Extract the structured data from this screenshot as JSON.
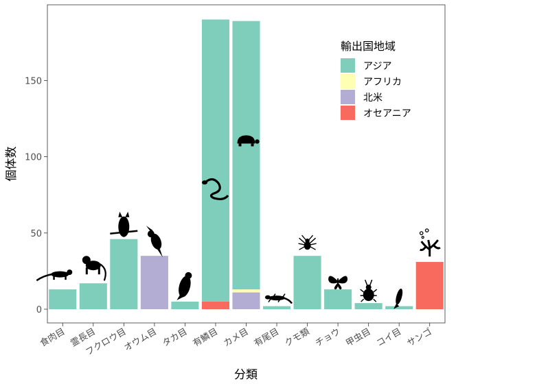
{
  "chart_data": {
    "type": "bar",
    "stacked": true,
    "xlabel": "分類",
    "ylabel": "個体数",
    "ylim": [
      0,
      200
    ],
    "yticks": [
      0,
      50,
      100,
      150
    ],
    "grid": false,
    "legend": {
      "title": "輸出国地域",
      "position": "top-right inside plot",
      "entries": [
        "アジア",
        "アフリカ",
        "北米",
        "オセアニア"
      ]
    },
    "colors": {
      "アジア": "#7FCDBB",
      "アフリカ": "#FFFFB3",
      "北米": "#B3ADD3",
      "オセアニア": "#F8695E"
    },
    "categories": [
      "食肉目",
      "霊長目",
      "フクロウ目",
      "オウム目",
      "タカ目",
      "有鱗目",
      "カメ目",
      "有尾目",
      "クモ類",
      "チョウ",
      "甲虫目",
      "コイ目",
      "サンゴ"
    ],
    "series": [
      {
        "name": "アジア",
        "values": [
          13,
          17,
          46,
          0,
          5,
          185,
          176,
          2,
          35,
          13,
          4,
          2,
          0
        ]
      },
      {
        "name": "アフリカ",
        "values": [
          0,
          0,
          0,
          0,
          0,
          0,
          2,
          0,
          0,
          0,
          0,
          0,
          0
        ]
      },
      {
        "name": "北米",
        "values": [
          0,
          0,
          0,
          35,
          0,
          0,
          11,
          0,
          0,
          0,
          0,
          0,
          0
        ]
      },
      {
        "name": "オセアニア",
        "values": [
          0,
          0,
          0,
          0,
          0,
          5,
          0,
          0,
          0,
          0,
          0,
          0,
          31
        ]
      }
    ],
    "icons": [
      "mongoose-icon",
      "monkey-icon",
      "owl-icon",
      "cockatoo-icon",
      "eagle-icon",
      "snake-icon",
      "turtle-icon",
      "salamander-icon",
      "spider-icon",
      "butterfly-icon",
      "beetle-icon",
      "fish-icon",
      "coral-icon"
    ]
  }
}
